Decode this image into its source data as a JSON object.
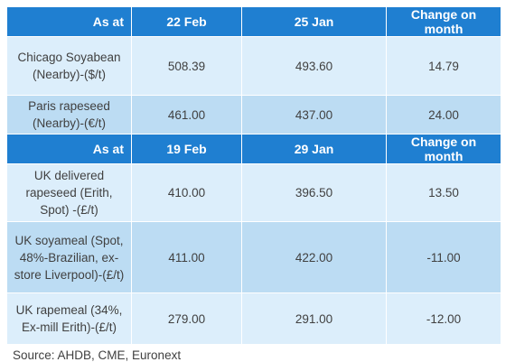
{
  "header1": {
    "as_at": "As at",
    "date_a": "22 Feb",
    "date_b": "25 Jan",
    "change": "Change on month"
  },
  "section1": [
    {
      "label": "Chicago Soyabean (Nearby)-($/t)",
      "current": "508.39",
      "previous": "493.60",
      "change": "14.79"
    },
    {
      "label": "Paris rapeseed (Nearby)-(€/t)",
      "current": "461.00",
      "previous": "437.00",
      "change": "24.00"
    }
  ],
  "header2": {
    "as_at": "As at",
    "date_a": "19 Feb",
    "date_b": "29 Jan",
    "change": "Change on month"
  },
  "section2": [
    {
      "label": "UK delivered rapeseed (Erith, Spot) -(£/t)",
      "current": "410.00",
      "previous": "396.50",
      "change": "13.50"
    },
    {
      "label": "UK soyameal (Spot, 48%-Brazilian, ex-store Liverpool)-(£/t)",
      "current": "411.00",
      "previous": "422.00",
      "change": "-11.00"
    },
    {
      "label": "UK rapemeal (34%, Ex-mill Erith)-(£/t)",
      "current": "279.00",
      "previous": "291.00",
      "change": "-12.00"
    }
  ],
  "source": "Source: AHDB, CME, Euronext",
  "colors": {
    "header": "#1f7fd1",
    "row_light": "#dceefb",
    "row_mid": "#bcdcf3"
  }
}
